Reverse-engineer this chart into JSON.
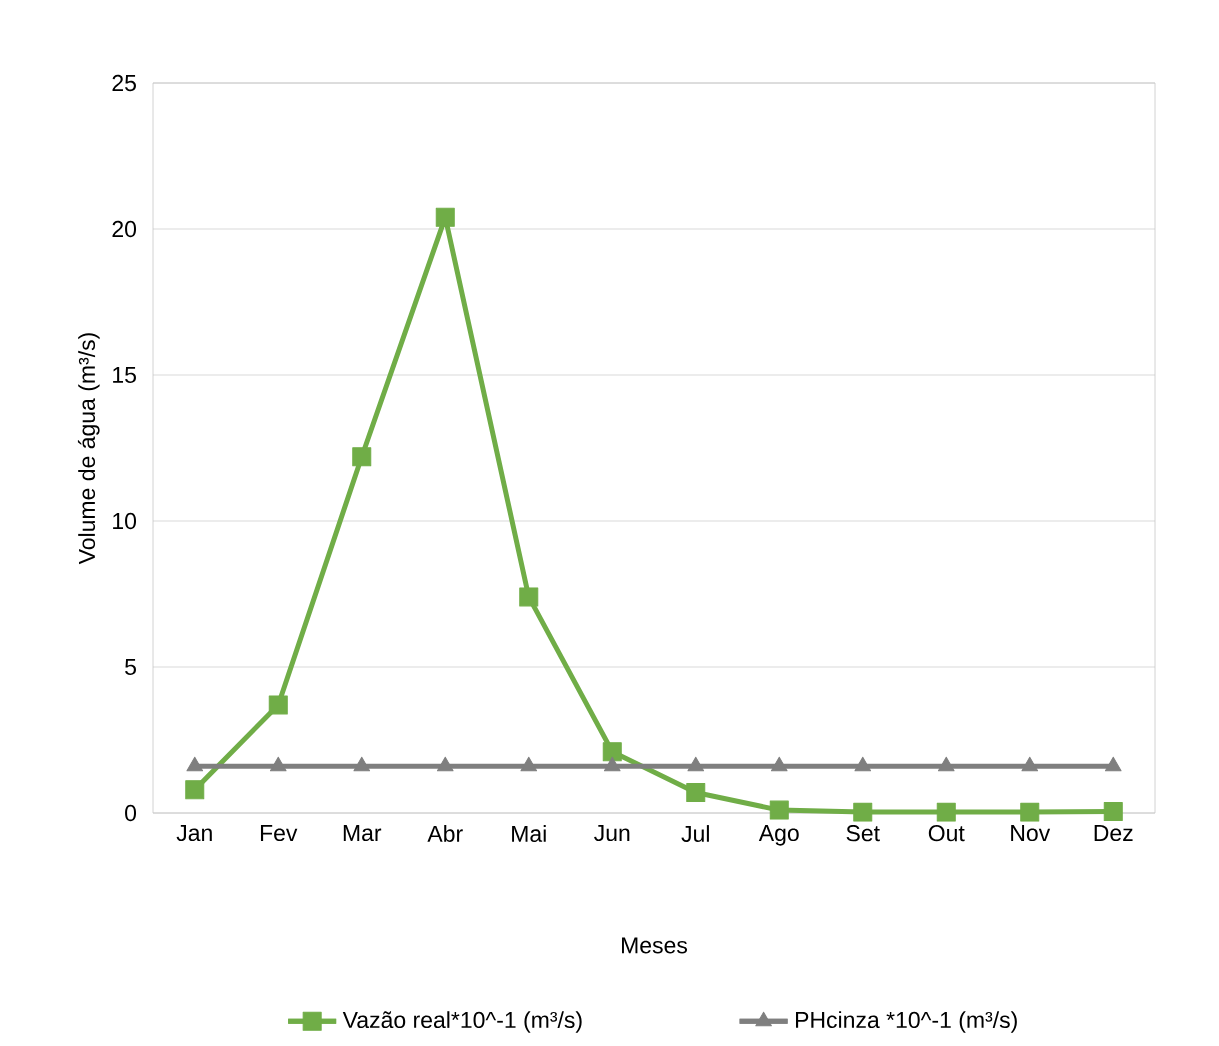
{
  "chart_data": {
    "type": "line",
    "xlabel": "Meses",
    "ylabel": "Volume de água (m³/s)",
    "categories": [
      "Jan",
      "Fev",
      "Mar",
      "Abr",
      "Mai",
      "Jun",
      "Jul",
      "Ago",
      "Set",
      "Out",
      "Nov",
      "Dez"
    ],
    "series": [
      {
        "name": "Vazão real*10^-1 (m³/s)",
        "color": "#70ad47",
        "marker": "square",
        "values": [
          0.8,
          3.7,
          12.2,
          20.4,
          7.4,
          2.1,
          0.7,
          0.1,
          0.03,
          0.03,
          0.03,
          0.05
        ]
      },
      {
        "name": "PHcinza *10^-1 (m³/s)",
        "color": "#7f7f7f",
        "marker": "triangle",
        "values": [
          1.6,
          1.6,
          1.6,
          1.6,
          1.6,
          1.6,
          1.6,
          1.6,
          1.6,
          1.6,
          1.6,
          1.6
        ]
      }
    ],
    "ylim": [
      0,
      25
    ],
    "yticks": [
      0,
      5,
      10,
      15,
      20,
      25
    ],
    "grid": "y",
    "legend": "bottom",
    "line_style": "solid"
  }
}
